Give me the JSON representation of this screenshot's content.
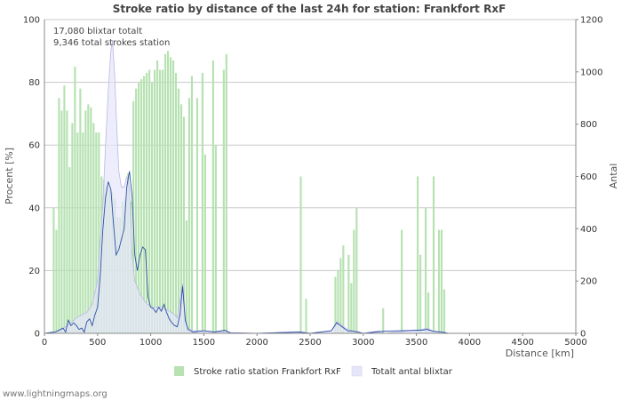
{
  "chart_data": {
    "type": "bar",
    "title": "Stroke ratio by distance of the last 24h for station: Frankfort RxF",
    "xlabel": "Distance   [km]",
    "ylabel_left": "Procent   [%]",
    "ylabel_right": "Antal",
    "xlim": [
      0,
      5000
    ],
    "ylim_left": [
      0,
      100
    ],
    "ylim_right": [
      0,
      1200
    ],
    "x_ticks": [
      "0",
      "500",
      "1000",
      "1500",
      "2000",
      "2500",
      "3000",
      "3500",
      "4000",
      "4500",
      "5000"
    ],
    "y_left_ticks": [
      "0",
      "20",
      "40",
      "60",
      "80",
      "100"
    ],
    "y_right_ticks": [
      "0",
      "200",
      "400",
      "600",
      "800",
      "1000",
      "1200"
    ],
    "bin_width_km": 25,
    "annotations": [
      "17,080 blixtar totalt",
      "9,346 total strokes station"
    ],
    "legend": [
      "Stroke ratio station Frankfort RxF",
      "Totalt antal blixtar"
    ],
    "colors": {
      "ratio_bar": "#b6e2b1",
      "total_area_fill": "#e6e6fa",
      "total_area_stroke": "#b9b9e6",
      "station_line": "#2e4fa8",
      "grid": "#c8c8c8"
    },
    "series": [
      {
        "name": "Stroke ratio station Frankfort RxF",
        "axis": "left",
        "bars": [
          [
            75,
            40
          ],
          [
            100,
            33
          ],
          [
            125,
            75
          ],
          [
            150,
            71
          ],
          [
            175,
            79
          ],
          [
            200,
            71
          ],
          [
            225,
            53
          ],
          [
            250,
            67
          ],
          [
            275,
            85
          ],
          [
            300,
            64
          ],
          [
            325,
            78
          ],
          [
            350,
            64
          ],
          [
            375,
            71
          ],
          [
            400,
            73
          ],
          [
            425,
            72
          ],
          [
            450,
            67
          ],
          [
            475,
            64
          ],
          [
            500,
            64
          ],
          [
            525,
            50
          ],
          [
            550,
            49
          ],
          [
            575,
            47
          ],
          [
            600,
            46
          ],
          [
            625,
            45
          ],
          [
            650,
            43
          ],
          [
            675,
            37
          ],
          [
            700,
            37
          ],
          [
            725,
            42
          ],
          [
            750,
            43
          ],
          [
            775,
            51
          ],
          [
            800,
            42
          ],
          [
            825,
            74
          ],
          [
            850,
            78
          ],
          [
            875,
            80
          ],
          [
            900,
            81
          ],
          [
            925,
            82
          ],
          [
            950,
            83
          ],
          [
            975,
            84
          ],
          [
            1000,
            80
          ],
          [
            1025,
            84
          ],
          [
            1050,
            87
          ],
          [
            1075,
            84
          ],
          [
            1100,
            84
          ],
          [
            1125,
            89
          ],
          [
            1150,
            90
          ],
          [
            1175,
            88
          ],
          [
            1200,
            87
          ],
          [
            1225,
            83
          ],
          [
            1250,
            78
          ],
          [
            1275,
            73
          ],
          [
            1300,
            69
          ],
          [
            1325,
            36
          ],
          [
            1350,
            75
          ],
          [
            1375,
            82
          ],
          [
            1425,
            75
          ],
          [
            1475,
            83
          ],
          [
            1500,
            57
          ],
          [
            1575,
            87
          ],
          [
            1600,
            60
          ],
          [
            1675,
            84
          ],
          [
            1700,
            89
          ],
          [
            2400,
            50
          ],
          [
            2450,
            11
          ],
          [
            2725,
            18
          ],
          [
            2750,
            20
          ],
          [
            2775,
            24
          ],
          [
            2800,
            28
          ],
          [
            2850,
            25
          ],
          [
            2875,
            16
          ],
          [
            2900,
            33
          ],
          [
            2925,
            40
          ],
          [
            3175,
            8
          ],
          [
            3350,
            33
          ],
          [
            3500,
            50
          ],
          [
            3525,
            25
          ],
          [
            3575,
            40
          ],
          [
            3600,
            13
          ],
          [
            3650,
            50
          ],
          [
            3700,
            33
          ],
          [
            3725,
            33
          ],
          [
            3750,
            14
          ]
        ]
      },
      {
        "name": "Totalt antal blixtar",
        "axis": "right",
        "points": [
          [
            0,
            0
          ],
          [
            50,
            2
          ],
          [
            100,
            5
          ],
          [
            150,
            10
          ],
          [
            200,
            25
          ],
          [
            250,
            40
          ],
          [
            300,
            60
          ],
          [
            350,
            70
          ],
          [
            400,
            80
          ],
          [
            450,
            110
          ],
          [
            500,
            200
          ],
          [
            525,
            350
          ],
          [
            550,
            500
          ],
          [
            575,
            720
          ],
          [
            600,
            930
          ],
          [
            625,
            1080
          ],
          [
            640,
            1120
          ],
          [
            660,
            1000
          ],
          [
            680,
            800
          ],
          [
            700,
            620
          ],
          [
            725,
            560
          ],
          [
            750,
            560
          ],
          [
            775,
            600
          ],
          [
            800,
            560
          ],
          [
            825,
            300
          ],
          [
            850,
            200
          ],
          [
            900,
            150
          ],
          [
            950,
            120
          ],
          [
            1000,
            100
          ],
          [
            1050,
            100
          ],
          [
            1100,
            100
          ],
          [
            1150,
            90
          ],
          [
            1200,
            80
          ],
          [
            1250,
            60
          ],
          [
            1300,
            190
          ],
          [
            1325,
            60
          ],
          [
            1350,
            20
          ],
          [
            1400,
            10
          ],
          [
            1500,
            10
          ],
          [
            1600,
            5
          ],
          [
            1700,
            5
          ],
          [
            1750,
            2
          ],
          [
            2000,
            0
          ],
          [
            2400,
            5
          ],
          [
            2500,
            0
          ],
          [
            2700,
            10
          ],
          [
            2750,
            45
          ],
          [
            2800,
            30
          ],
          [
            2850,
            15
          ],
          [
            2900,
            10
          ],
          [
            2950,
            5
          ],
          [
            3000,
            0
          ],
          [
            3150,
            10
          ],
          [
            3200,
            0
          ],
          [
            3550,
            15
          ],
          [
            3600,
            20
          ],
          [
            3650,
            10
          ],
          [
            3750,
            5
          ],
          [
            3800,
            0
          ]
        ]
      },
      {
        "name": "Strokes station Frankfort RxF",
        "axis": "right",
        "points": [
          [
            0,
            0
          ],
          [
            100,
            5
          ],
          [
            150,
            15
          ],
          [
            175,
            20
          ],
          [
            200,
            5
          ],
          [
            225,
            50
          ],
          [
            250,
            30
          ],
          [
            275,
            40
          ],
          [
            300,
            30
          ],
          [
            325,
            15
          ],
          [
            350,
            20
          ],
          [
            375,
            5
          ],
          [
            400,
            45
          ],
          [
            425,
            55
          ],
          [
            450,
            30
          ],
          [
            475,
            70
          ],
          [
            500,
            100
          ],
          [
            525,
            220
          ],
          [
            550,
            400
          ],
          [
            575,
            520
          ],
          [
            600,
            580
          ],
          [
            625,
            550
          ],
          [
            650,
            420
          ],
          [
            675,
            300
          ],
          [
            700,
            320
          ],
          [
            725,
            360
          ],
          [
            750,
            400
          ],
          [
            775,
            560
          ],
          [
            800,
            620
          ],
          [
            825,
            520
          ],
          [
            850,
            300
          ],
          [
            875,
            240
          ],
          [
            900,
            300
          ],
          [
            925,
            330
          ],
          [
            950,
            320
          ],
          [
            975,
            140
          ],
          [
            1000,
            100
          ],
          [
            1025,
            95
          ],
          [
            1050,
            80
          ],
          [
            1075,
            100
          ],
          [
            1100,
            85
          ],
          [
            1125,
            110
          ],
          [
            1150,
            80
          ],
          [
            1175,
            55
          ],
          [
            1200,
            40
          ],
          [
            1225,
            30
          ],
          [
            1250,
            25
          ],
          [
            1275,
            70
          ],
          [
            1300,
            180
          ],
          [
            1325,
            50
          ],
          [
            1350,
            15
          ],
          [
            1400,
            5
          ],
          [
            1500,
            10
          ],
          [
            1600,
            5
          ],
          [
            1700,
            12
          ],
          [
            1750,
            2
          ],
          [
            2000,
            0
          ],
          [
            2400,
            5
          ],
          [
            2500,
            0
          ],
          [
            2700,
            10
          ],
          [
            2750,
            40
          ],
          [
            2800,
            25
          ],
          [
            2850,
            10
          ],
          [
            2900,
            8
          ],
          [
            2950,
            5
          ],
          [
            3000,
            0
          ],
          [
            3200,
            8
          ],
          [
            3550,
            12
          ],
          [
            3600,
            15
          ],
          [
            3650,
            8
          ],
          [
            3750,
            4
          ],
          [
            3800,
            0
          ]
        ]
      }
    ]
  },
  "footer": "www.lightningmaps.org"
}
